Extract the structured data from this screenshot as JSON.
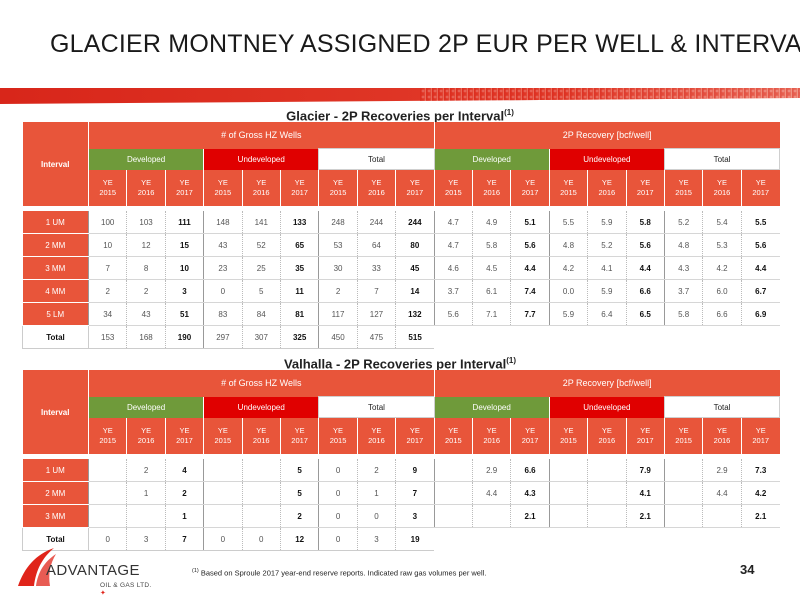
{
  "page": {
    "title": "GLACIER MONTNEY ASSIGNED 2P EUR PER WELL & INTERVAL",
    "page_number": "34",
    "footnote_mark": "(1)",
    "footnote_text": "Based on Sproule 2017 year-end reserve reports. Indicated raw gas volumes per well."
  },
  "logo": {
    "name": "ADVANTAGE",
    "sub": "OIL & GAS LTD."
  },
  "colors": {
    "header_orange": "#e8553a",
    "developed_green": "#6f9a3a",
    "undeveloped_red": "#e00000"
  },
  "glacier": {
    "title": "Glacier - 2P Recoveries per Interval",
    "title_sup": "(1)",
    "interval_label": "Interval",
    "group_headers": [
      "# of Gross HZ Wells",
      "2P Recovery [bcf/well]"
    ],
    "sub_headers": [
      "Developed",
      "Undeveloped",
      "Total",
      "Developed",
      "Undeveloped",
      "Total"
    ],
    "years": [
      "YE 2015",
      "YE 2016",
      "YE 2017"
    ],
    "rows": [
      {
        "label": "1 UM",
        "values": [
          "100",
          "103",
          "111",
          "148",
          "141",
          "133",
          "248",
          "244",
          "244",
          "4.7",
          "4.9",
          "5.1",
          "5.5",
          "5.9",
          "5.8",
          "5.2",
          "5.4",
          "5.5"
        ]
      },
      {
        "label": "2 MM",
        "values": [
          "10",
          "12",
          "15",
          "43",
          "52",
          "65",
          "53",
          "64",
          "80",
          "4.7",
          "5.8",
          "5.6",
          "4.8",
          "5.2",
          "5.6",
          "4.8",
          "5.3",
          "5.6"
        ]
      },
      {
        "label": "3 MM",
        "values": [
          "7",
          "8",
          "10",
          "23",
          "25",
          "35",
          "30",
          "33",
          "45",
          "4.6",
          "4.5",
          "4.4",
          "4.2",
          "4.1",
          "4.4",
          "4.3",
          "4.2",
          "4.4"
        ]
      },
      {
        "label": "4 MM",
        "values": [
          "2",
          "2",
          "3",
          "0",
          "5",
          "11",
          "2",
          "7",
          "14",
          "3.7",
          "6.1",
          "7.4",
          "0.0",
          "5.9",
          "6.6",
          "3.7",
          "6.0",
          "6.7"
        ]
      },
      {
        "label": "5 LM",
        "values": [
          "34",
          "43",
          "51",
          "83",
          "84",
          "81",
          "117",
          "127",
          "132",
          "5.6",
          "7.1",
          "7.7",
          "5.9",
          "6.4",
          "6.5",
          "5.8",
          "6.6",
          "6.9"
        ]
      }
    ],
    "total": {
      "label": "Total",
      "values": [
        "153",
        "168",
        "190",
        "297",
        "307",
        "325",
        "450",
        "475",
        "515"
      ]
    }
  },
  "valhalla": {
    "title": "Valhalla - 2P Recoveries per Interval",
    "title_sup": "(1)",
    "interval_label": "Interval",
    "group_headers": [
      "# of Gross HZ Wells",
      "2P Recovery [bcf/well]"
    ],
    "sub_headers": [
      "Developed",
      "Undeveloped",
      "Total",
      "Developed",
      "Undeveloped",
      "Total"
    ],
    "years": [
      "YE 2015",
      "YE 2016",
      "YE 2017"
    ],
    "rows": [
      {
        "label": "1 UM",
        "values": [
          "",
          "2",
          "4",
          "",
          "",
          "5",
          "0",
          "2",
          "9",
          "",
          "2.9",
          "6.6",
          "",
          "",
          "7.9",
          "",
          "2.9",
          "7.3"
        ]
      },
      {
        "label": "2 MM",
        "values": [
          "",
          "1",
          "2",
          "",
          "",
          "5",
          "0",
          "1",
          "7",
          "",
          "4.4",
          "4.3",
          "",
          "",
          "4.1",
          "",
          "4.4",
          "4.2"
        ]
      },
      {
        "label": "3 MM",
        "values": [
          "",
          "",
          "1",
          "",
          "",
          "2",
          "0",
          "0",
          "3",
          "",
          "",
          "2.1",
          "",
          "",
          "2.1",
          "",
          "",
          "2.1"
        ]
      }
    ],
    "total": {
      "label": "Total",
      "values": [
        "0",
        "3",
        "7",
        "0",
        "0",
        "12",
        "0",
        "3",
        "19"
      ]
    }
  }
}
